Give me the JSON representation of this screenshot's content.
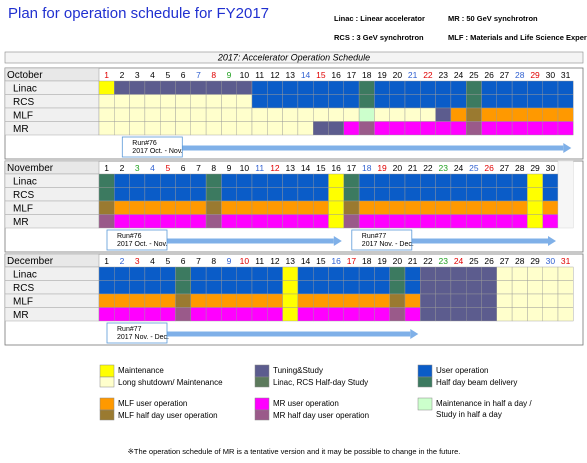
{
  "title": "Plan for operation schedule for FY2017",
  "notes": [
    "Linac : Linear accelerator",
    "MR : 50 GeV synchrotron",
    "RCS : 3 GeV synchrotron",
    "MLF : Materials and Life Science Experimental Facility"
  ],
  "table_title": "2017: Accelerator Operation Schedule",
  "facilities": [
    "Linac",
    "RCS",
    "MLF",
    "MR"
  ],
  "legend": [
    {
      "label": "Maintenance",
      "color": "#ffff00"
    },
    {
      "label": "Long shutdown/ Maintenance",
      "color": "#ffffcc"
    },
    {
      "label": "Tuning&Study",
      "color": "#5c5c8e"
    },
    {
      "label": "Linac, RCS Half-day Study",
      "color": "#5c7a5c"
    },
    {
      "label": "User operation",
      "color": "#0a5cc8"
    },
    {
      "label": "Half day beam delivery",
      "color": "#3c7a60"
    },
    {
      "label": "MLF user operation",
      "color": "#ff9900"
    },
    {
      "label": "MLF half day user operation",
      "color": "#9a7a30"
    },
    {
      "label": "MR user operation",
      "color": "#ff00ff"
    },
    {
      "label": "MR half day user operation",
      "color": "#9a5a8a"
    },
    {
      "label": [
        "Maintenance in half a day /",
        "Study in half a day"
      ],
      "color": "#ccffcc"
    }
  ],
  "months": [
    {
      "name": "October",
      "days": [
        1,
        2,
        3,
        4,
        5,
        6,
        7,
        8,
        9,
        10,
        11,
        12,
        13,
        14,
        15,
        16,
        17,
        18,
        19,
        20,
        21,
        22,
        23,
        24,
        25,
        26,
        27,
        28,
        29,
        30,
        31
      ],
      "day_colors": [
        {
          "color": "#e00000",
          "days": [
            1,
            8,
            15,
            22,
            29
          ]
        },
        {
          "color": "#3060d0",
          "days": [
            7,
            14,
            21,
            28
          ]
        },
        {
          "color": "#20a020",
          "days": [
            9
          ]
        }
      ],
      "rows": [
        [
          0,
          2,
          2,
          2,
          2,
          2,
          2,
          2,
          2,
          2,
          4,
          4,
          4,
          4,
          4,
          4,
          4,
          5,
          4,
          4,
          4,
          4,
          4,
          4,
          5,
          4,
          4,
          4,
          4,
          4,
          4
        ],
        [
          1,
          1,
          1,
          1,
          1,
          1,
          1,
          1,
          1,
          1,
          4,
          4,
          4,
          4,
          4,
          4,
          4,
          5,
          4,
          4,
          4,
          4,
          4,
          4,
          5,
          4,
          4,
          4,
          4,
          4,
          4
        ],
        [
          1,
          1,
          1,
          1,
          1,
          1,
          1,
          1,
          1,
          1,
          1,
          1,
          1,
          1,
          1,
          1,
          1,
          10,
          1,
          1,
          1,
          1,
          2,
          6,
          7,
          6,
          6,
          6,
          6,
          6,
          6
        ],
        [
          1,
          1,
          1,
          1,
          1,
          1,
          1,
          1,
          1,
          1,
          1,
          1,
          1,
          1,
          2,
          2,
          8,
          9,
          8,
          8,
          8,
          8,
          8,
          8,
          9,
          8,
          8,
          8,
          8,
          8,
          8
        ]
      ],
      "runs": [
        {
          "label": "Run#76",
          "period": "2017 Oct. - Nov.",
          "from_day": 2,
          "to_day": 31
        }
      ]
    },
    {
      "name": "November",
      "days": [
        1,
        2,
        3,
        4,
        5,
        6,
        7,
        8,
        9,
        10,
        11,
        12,
        13,
        14,
        15,
        16,
        17,
        18,
        19,
        20,
        21,
        22,
        23,
        24,
        25,
        26,
        27,
        28,
        29,
        30
      ],
      "day_colors": [
        {
          "color": "#e00000",
          "days": [
            5,
            12,
            19,
            26
          ]
        },
        {
          "color": "#3060d0",
          "days": [
            4,
            11,
            18,
            25
          ]
        },
        {
          "color": "#20a020",
          "days": [
            3,
            23
          ]
        }
      ],
      "rows": [
        [
          5,
          4,
          4,
          4,
          4,
          4,
          4,
          5,
          4,
          4,
          4,
          4,
          4,
          4,
          4,
          0,
          5,
          4,
          4,
          4,
          4,
          4,
          4,
          4,
          4,
          4,
          4,
          4,
          0,
          4
        ],
        [
          5,
          4,
          4,
          4,
          4,
          4,
          4,
          5,
          4,
          4,
          4,
          4,
          4,
          4,
          4,
          0,
          5,
          4,
          4,
          4,
          4,
          4,
          4,
          4,
          4,
          4,
          4,
          4,
          0,
          4
        ],
        [
          7,
          6,
          6,
          6,
          6,
          6,
          6,
          7,
          6,
          6,
          6,
          6,
          6,
          6,
          6,
          0,
          7,
          6,
          6,
          6,
          6,
          6,
          6,
          6,
          6,
          6,
          6,
          6,
          0,
          6
        ],
        [
          9,
          8,
          8,
          8,
          8,
          8,
          8,
          9,
          8,
          8,
          8,
          8,
          8,
          8,
          8,
          0,
          9,
          8,
          8,
          8,
          8,
          8,
          8,
          8,
          8,
          8,
          8,
          8,
          0,
          8
        ]
      ],
      "runs": [
        {
          "label": "Run#76",
          "period": "2017 Oct. - Nov.",
          "from_day": 1,
          "to_day": 16
        },
        {
          "label": "Run#77",
          "period": "2017 Nov. - Dec.",
          "from_day": 17,
          "to_day": 30
        }
      ]
    },
    {
      "name": "December",
      "days": [
        1,
        2,
        3,
        4,
        5,
        6,
        7,
        8,
        9,
        10,
        11,
        12,
        13,
        14,
        15,
        16,
        17,
        18,
        19,
        20,
        21,
        22,
        23,
        24,
        25,
        26,
        27,
        28,
        29,
        30,
        31
      ],
      "day_colors": [
        {
          "color": "#e00000",
          "days": [
            3,
            10,
            17,
            24,
            31
          ]
        },
        {
          "color": "#3060d0",
          "days": [
            2,
            9,
            16,
            30
          ]
        },
        {
          "color": "#20a020",
          "days": [
            23
          ]
        }
      ],
      "rows": [
        [
          4,
          4,
          4,
          4,
          4,
          5,
          4,
          4,
          4,
          4,
          4,
          4,
          0,
          4,
          4,
          4,
          4,
          4,
          4,
          5,
          4,
          2,
          2,
          2,
          2,
          2,
          1,
          1,
          1,
          1,
          1
        ],
        [
          4,
          4,
          4,
          4,
          4,
          5,
          4,
          4,
          4,
          4,
          4,
          4,
          0,
          4,
          4,
          4,
          4,
          4,
          4,
          5,
          4,
          2,
          2,
          2,
          2,
          2,
          1,
          1,
          1,
          1,
          1
        ],
        [
          6,
          6,
          6,
          6,
          6,
          7,
          6,
          6,
          6,
          6,
          6,
          6,
          0,
          6,
          6,
          6,
          6,
          6,
          6,
          7,
          6,
          2,
          2,
          2,
          2,
          2,
          1,
          1,
          1,
          1,
          1
        ],
        [
          8,
          8,
          8,
          8,
          8,
          9,
          8,
          8,
          8,
          8,
          8,
          8,
          0,
          8,
          8,
          8,
          8,
          8,
          8,
          9,
          8,
          2,
          2,
          2,
          2,
          2,
          1,
          1,
          1,
          1,
          1
        ]
      ],
      "runs": [
        {
          "label": "Run#77",
          "period": "2017 Nov. - Dec.",
          "from_day": 1,
          "to_day": 21
        }
      ]
    }
  ],
  "footnote": "※The operation schedule of MR is a tentative version and it may be possible to change in the future."
}
